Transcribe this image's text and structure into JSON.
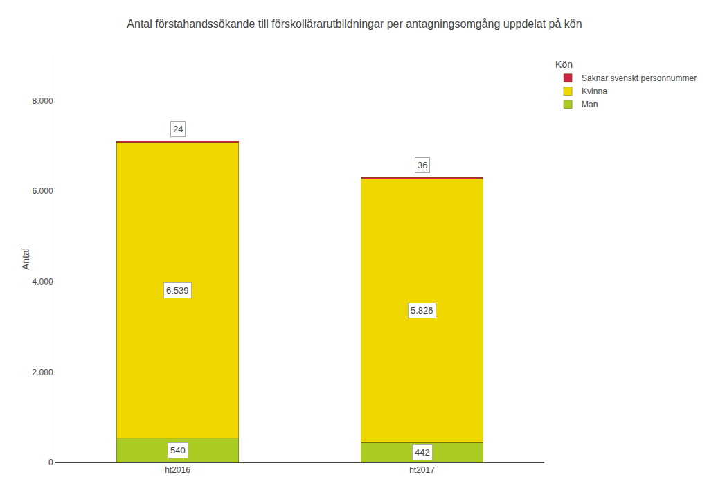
{
  "chart_data": {
    "type": "bar",
    "stacked": true,
    "title": "Antal förstahandssökande till förskollärarutbildningar per antagningsomgång uppdelat på kön",
    "categories": [
      "ht2016",
      "ht2017"
    ],
    "ylabel": "Antal",
    "legend_title": "Kön",
    "legend": "upper right",
    "grid": false,
    "data_labels": true,
    "ylim": [
      0,
      9000
    ],
    "yticks": [
      0,
      {
        "value": 2000,
        "label": "2.000"
      },
      {
        "value": 4000,
        "label": "4.000"
      },
      {
        "value": 6000,
        "label": "6.000"
      },
      {
        "value": 8000,
        "label": "8.000"
      }
    ],
    "series": [
      {
        "name": "Man",
        "color": "#aacc22",
        "values": [
          540,
          442
        ],
        "value_labels": [
          "540",
          "442"
        ]
      },
      {
        "name": "Kvinna",
        "color": "#eed800",
        "values": [
          6539,
          5826
        ],
        "value_labels": [
          "6.539",
          "5.826"
        ]
      },
      {
        "name": "Saknar svenskt personnummer",
        "color": "#cc2244",
        "values": [
          24,
          36
        ],
        "value_labels": [
          "24",
          "36"
        ]
      }
    ]
  }
}
